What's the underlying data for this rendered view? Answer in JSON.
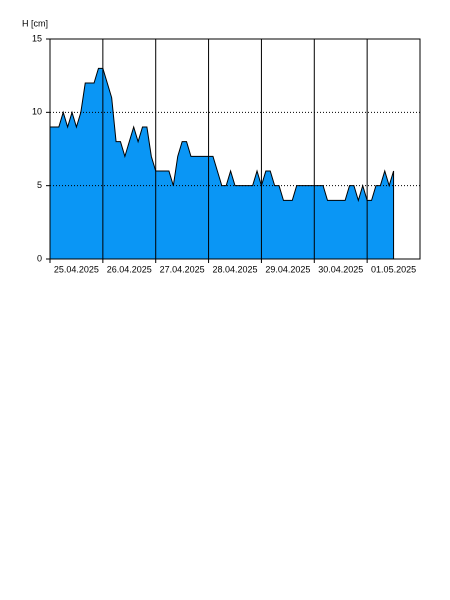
{
  "chart_data": {
    "type": "area",
    "ylabel": "H [cm]",
    "color": "#0a96f5",
    "x": [
      "2025-04-25T00:00",
      "2025-04-25T02:00",
      "2025-04-25T04:00",
      "2025-04-25T06:00",
      "2025-04-25T08:00",
      "2025-04-25T10:00",
      "2025-04-25T12:00",
      "2025-04-25T14:00",
      "2025-04-25T16:00",
      "2025-04-25T18:00",
      "2025-04-25T20:00",
      "2025-04-25T22:00",
      "2025-04-26T00:00",
      "2025-04-26T02:00",
      "2025-04-26T04:00",
      "2025-04-26T06:00",
      "2025-04-26T08:00",
      "2025-04-26T10:00",
      "2025-04-26T12:00",
      "2025-04-26T14:00",
      "2025-04-26T16:00",
      "2025-04-26T18:00",
      "2025-04-26T20:00",
      "2025-04-26T22:00",
      "2025-04-27T00:00",
      "2025-04-27T02:00",
      "2025-04-27T04:00",
      "2025-04-27T06:00",
      "2025-04-27T08:00",
      "2025-04-27T10:00",
      "2025-04-27T12:00",
      "2025-04-27T14:00",
      "2025-04-27T16:00",
      "2025-04-27T18:00",
      "2025-04-27T20:00",
      "2025-04-27T22:00",
      "2025-04-28T00:00",
      "2025-04-28T02:00",
      "2025-04-28T04:00",
      "2025-04-28T06:00",
      "2025-04-28T08:00",
      "2025-04-28T10:00",
      "2025-04-28T12:00",
      "2025-04-28T14:00",
      "2025-04-28T16:00",
      "2025-04-28T18:00",
      "2025-04-28T20:00",
      "2025-04-28T22:00",
      "2025-04-29T00:00",
      "2025-04-29T02:00",
      "2025-04-29T04:00",
      "2025-04-29T06:00",
      "2025-04-29T08:00",
      "2025-04-29T10:00",
      "2025-04-29T12:00",
      "2025-04-29T14:00",
      "2025-04-29T16:00",
      "2025-04-29T18:00",
      "2025-04-29T20:00",
      "2025-04-29T22:00",
      "2025-04-30T00:00",
      "2025-04-30T02:00",
      "2025-04-30T04:00",
      "2025-04-30T06:00",
      "2025-04-30T08:00",
      "2025-04-30T10:00",
      "2025-04-30T12:00",
      "2025-04-30T14:00",
      "2025-04-30T16:00",
      "2025-04-30T18:00",
      "2025-04-30T20:00",
      "2025-04-30T22:00",
      "2025-05-01T00:00",
      "2025-05-01T02:00",
      "2025-05-01T04:00",
      "2025-05-01T06:00",
      "2025-05-01T08:00",
      "2025-05-01T10:00",
      "2025-05-01T12:00"
    ],
    "values": [
      9,
      9,
      9,
      10,
      9,
      10,
      9,
      10,
      12,
      12,
      12,
      13,
      13,
      12,
      11,
      8,
      8,
      7,
      8,
      9,
      8,
      9,
      9,
      7,
      6,
      6,
      6,
      6,
      5,
      7,
      8,
      8,
      7,
      7,
      7,
      7,
      7,
      7,
      6,
      5,
      5,
      6,
      5,
      5,
      5,
      5,
      5,
      6,
      5,
      6,
      6,
      5,
      5,
      4,
      4,
      4,
      5,
      5,
      5,
      5,
      5,
      5,
      5,
      4,
      4,
      4,
      4,
      4,
      5,
      5,
      4,
      5,
      4,
      4,
      5,
      5,
      6,
      5,
      6
    ],
    "xlim": [
      "2025-04-25T00:00",
      "2025-05-02T00:00"
    ],
    "xticks": [
      {
        "value": "2025-04-25T00:00",
        "label": "25.04.2025"
      },
      {
        "value": "2025-04-26T00:00",
        "label": "26.04.2025"
      },
      {
        "value": "2025-04-27T00:00",
        "label": "27.04.2025"
      },
      {
        "value": "2025-04-28T00:00",
        "label": "28.04.2025"
      },
      {
        "value": "2025-04-29T00:00",
        "label": "29.04.2025"
      },
      {
        "value": "2025-04-30T00:00",
        "label": "30.04.2025"
      },
      {
        "value": "2025-05-01T00:00",
        "label": "01.05.2025"
      }
    ],
    "ylim": [
      0,
      15
    ],
    "yticks": [
      0,
      5,
      10,
      15
    ],
    "grid": true
  }
}
